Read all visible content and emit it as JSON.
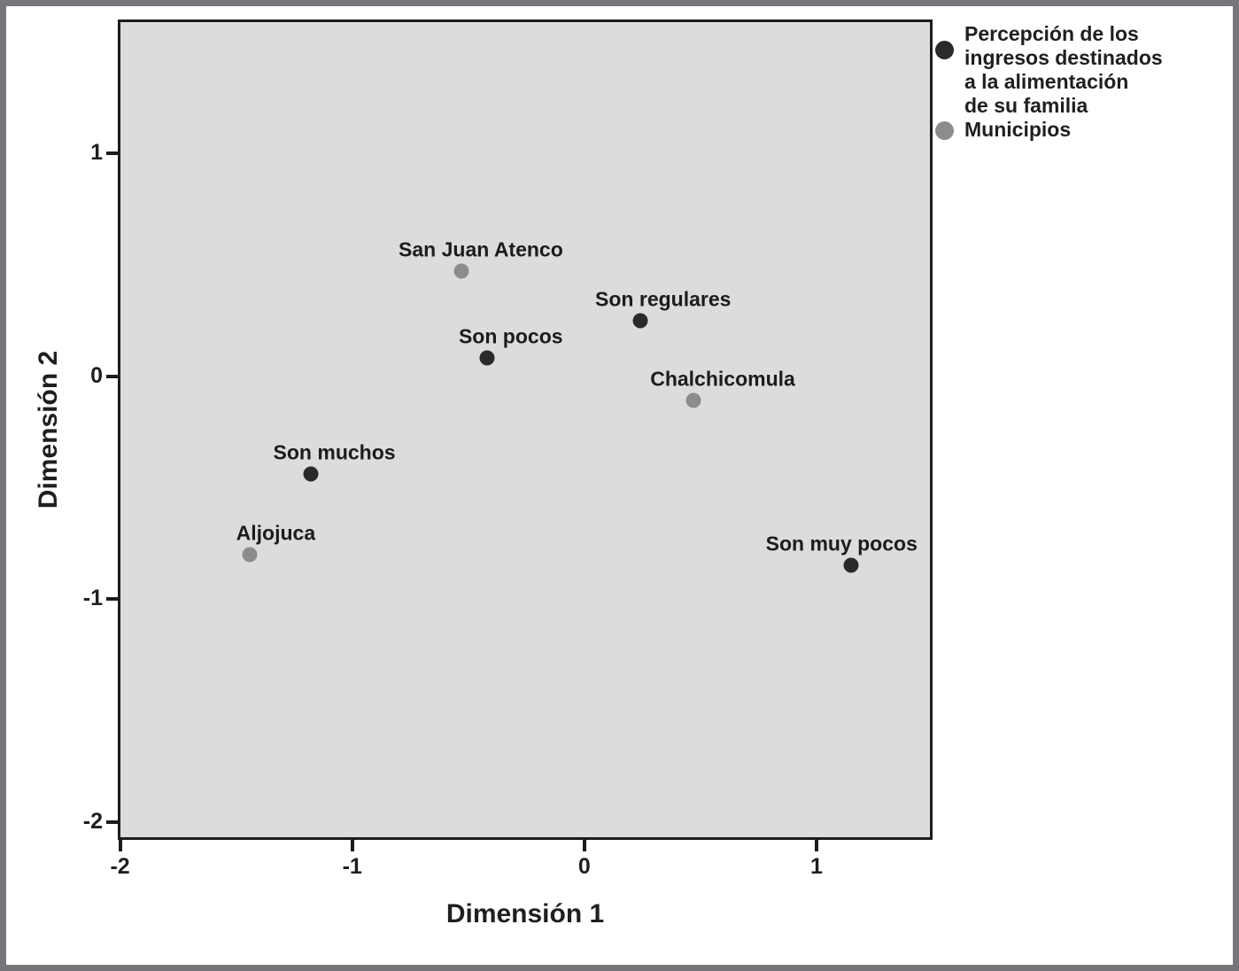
{
  "frame": {
    "background": "#ffffff",
    "border_color": "#76767a"
  },
  "chart_data": {
    "type": "scatter",
    "title": "",
    "xlabel": "Dimensión 1",
    "ylabel": "Dimensión 2",
    "xlim": [
      -2.01,
      1.5
    ],
    "ylim": [
      -2.08,
      1.6
    ],
    "xticks": [
      -2,
      -1,
      0,
      1
    ],
    "yticks": [
      1,
      0,
      -1,
      -2
    ],
    "grid": false,
    "plot_background": "#dcdcde",
    "plot_border_color": "#1c1c1c",
    "series": [
      {
        "name": "Percepción de los ingresos destinados a la alimentación de su familia",
        "color": "#2a2a2c",
        "points": [
          {
            "label": "Son regulares",
            "x": 0.24,
            "y": 0.25,
            "label_dx": 26
          },
          {
            "label": "Son pocos",
            "x": -0.42,
            "y": 0.08,
            "label_dx": 27
          },
          {
            "label": "Son muchos",
            "x": -1.18,
            "y": -0.44,
            "label_dx": 27
          },
          {
            "label": "Son muy pocos",
            "x": 1.15,
            "y": -0.85,
            "label_dx": -11
          }
        ]
      },
      {
        "name": "Municipios",
        "color": "#8c8c8e",
        "points": [
          {
            "label": "San Juan Atenco",
            "x": -0.53,
            "y": 0.47,
            "label_dx": 22
          },
          {
            "label": "Chalchicomula",
            "x": 0.47,
            "y": -0.11,
            "label_dx": 33
          },
          {
            "label": "Aljojuca",
            "x": -1.44,
            "y": -0.8,
            "label_dx": 29
          }
        ]
      }
    ],
    "legend": {
      "position": "outside-top-right",
      "entries": [
        {
          "marker_color": "#2a2a2c",
          "lines": [
            "Percepción de los",
            "ingresos destinados",
            "a la alimentación",
            "de su familia"
          ]
        },
        {
          "marker_color": "#8c8c8e",
          "lines": [
            "Municipios"
          ]
        }
      ]
    }
  }
}
